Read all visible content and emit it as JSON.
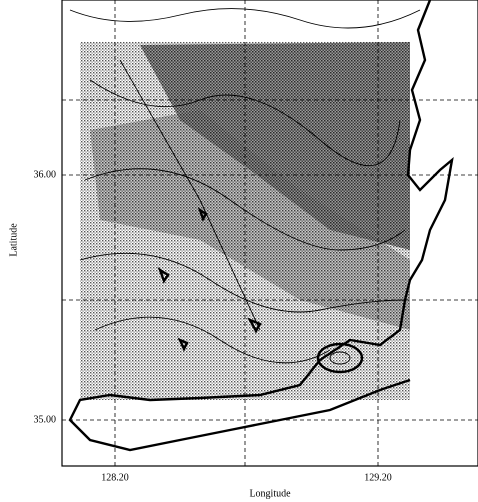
{
  "axes": {
    "x_label": "Longitude",
    "y_label": "Latitude",
    "x_ticks": [
      "128.20",
      "129.20"
    ],
    "y_ticks": [
      "36.00",
      "35.00"
    ]
  }
}
